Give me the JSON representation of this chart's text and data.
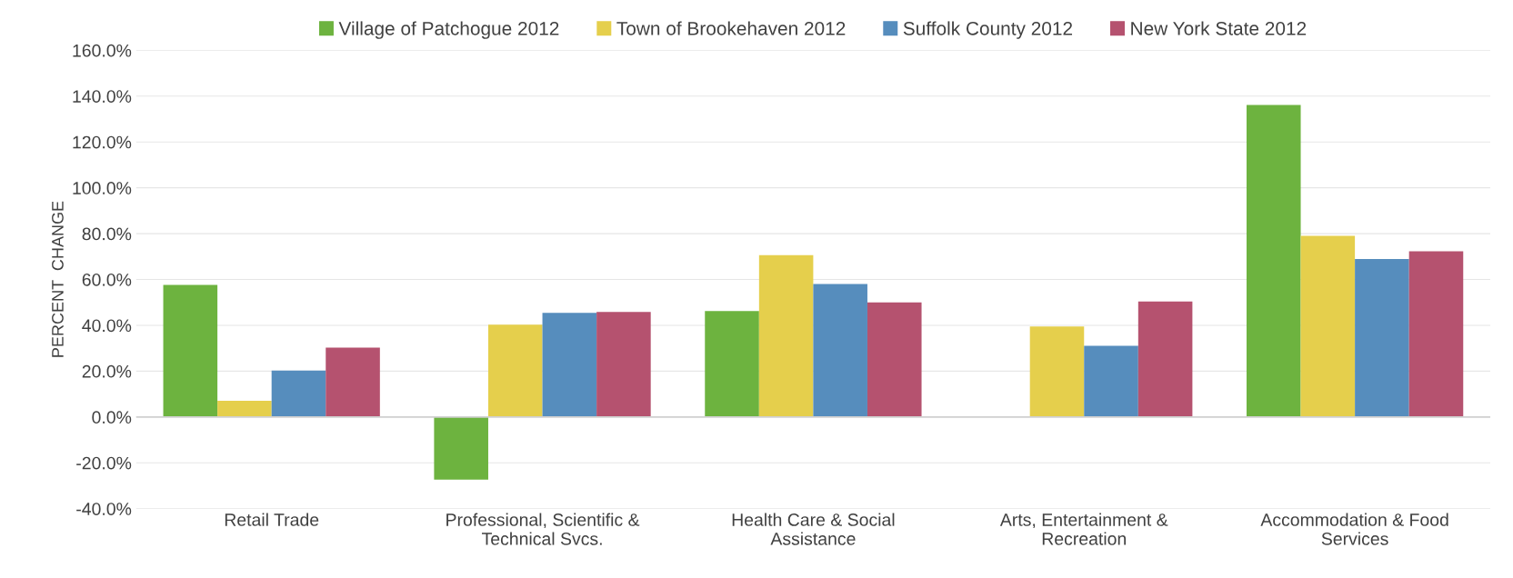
{
  "chart_data": {
    "type": "bar",
    "ylabel": "PERCENT  CHANGE",
    "categories": [
      "Retail Trade",
      "Professional, Scientific &\nTechnical Svcs.",
      "Health Care & Social\nAssistance",
      "Arts, Entertainment &\nRecreation",
      "Accommodation & Food\nServices"
    ],
    "series": [
      {
        "name": "Village of Patchogue 2012",
        "color": "#6db33f",
        "values": [
          57.6,
          -27.3,
          46.2,
          null,
          136.1
        ]
      },
      {
        "name": "Town of Brookehaven 2012",
        "color": "#e5cf4c",
        "values": [
          7.1,
          40.3,
          70.6,
          39.5,
          79.0
        ]
      },
      {
        "name": "Suffolk County 2012",
        "color": "#568dbd",
        "values": [
          20.2,
          45.4,
          58.0,
          31.1,
          68.9
        ]
      },
      {
        "name": "New York State 2012",
        "color": "#b5526f",
        "values": [
          30.3,
          45.8,
          50.0,
          50.4,
          72.3
        ]
      }
    ],
    "ylim": [
      -40,
      160
    ],
    "yticks": [
      {
        "value": -40,
        "label": "-40.0%"
      },
      {
        "value": -20,
        "label": "-20.0%"
      },
      {
        "value": 0,
        "label": "0.0%"
      },
      {
        "value": 20,
        "label": "20.0%"
      },
      {
        "value": 40,
        "label": "40.0%"
      },
      {
        "value": 60,
        "label": "60.0%"
      },
      {
        "value": 80,
        "label": "80.0%"
      },
      {
        "value": 100,
        "label": "100.0%"
      },
      {
        "value": 120,
        "label": "120.0%"
      },
      {
        "value": 140,
        "label": "140.0%"
      },
      {
        "value": 160,
        "label": "160.0%"
      }
    ],
    "grid": "y",
    "legend": "top"
  }
}
